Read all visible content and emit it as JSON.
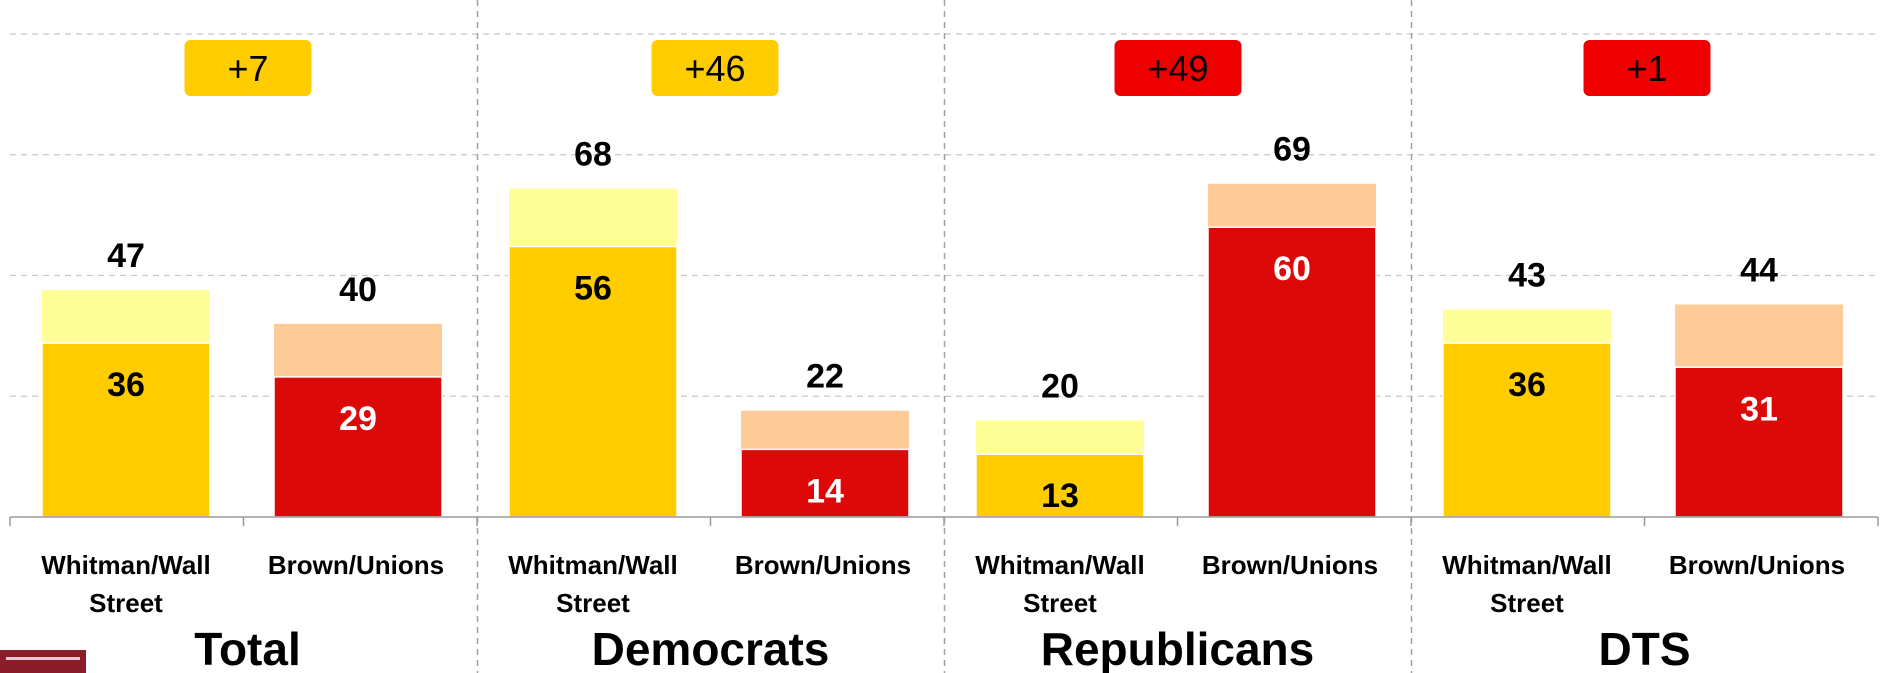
{
  "chart_data": {
    "type": "bar",
    "stacked": true,
    "grid": true,
    "ylim": [
      0,
      85
    ],
    "colors": {
      "whitman_strong": "#ffcc00",
      "whitman_total": "#ffff99",
      "brown_strong": "#dd0808",
      "brown_total": "#ffcc99",
      "diff_yellow": "#ffcc00",
      "diff_red": "#ee0000"
    },
    "groups": [
      {
        "name": "Total",
        "difference": "+7",
        "difference_color": "yellow",
        "bars": [
          {
            "category": "Whitman/Wall Street",
            "label_lines": [
              "Whitman/Wall",
              "Street"
            ],
            "side": "whitman",
            "strong": 36,
            "total": 47
          },
          {
            "category": "Brown/Unions",
            "label_lines": [
              "Brown/Unions"
            ],
            "side": "brown",
            "strong": 29,
            "total": 40
          }
        ]
      },
      {
        "name": "Democrats",
        "difference": "+46",
        "difference_color": "yellow",
        "bars": [
          {
            "category": "Whitman/Wall Street",
            "label_lines": [
              "Whitman/Wall",
              "Street"
            ],
            "side": "whitman",
            "strong": 56,
            "total": 68
          },
          {
            "category": "Brown/Unions",
            "label_lines": [
              "Brown/Unions"
            ],
            "side": "brown",
            "strong": 14,
            "total": 22
          }
        ]
      },
      {
        "name": "Republicans",
        "difference": "+49",
        "difference_color": "red",
        "bars": [
          {
            "category": "Whitman/Wall Street",
            "label_lines": [
              "Whitman/Wall",
              "Street"
            ],
            "side": "whitman",
            "strong": 13,
            "total": 20
          },
          {
            "category": "Brown/Unions",
            "label_lines": [
              "Brown/Unions"
            ],
            "side": "brown",
            "strong": 60,
            "total": 69
          }
        ]
      },
      {
        "name": "DTS",
        "difference": "+1",
        "difference_color": "red",
        "bars": [
          {
            "category": "Whitman/Wall Street",
            "label_lines": [
              "Whitman/Wall",
              "Street"
            ],
            "side": "whitman",
            "strong": 36,
            "total": 43
          },
          {
            "category": "Brown/Unions",
            "label_lines": [
              "Brown/Unions"
            ],
            "side": "brown",
            "strong": 31,
            "total": 44
          }
        ]
      }
    ]
  }
}
